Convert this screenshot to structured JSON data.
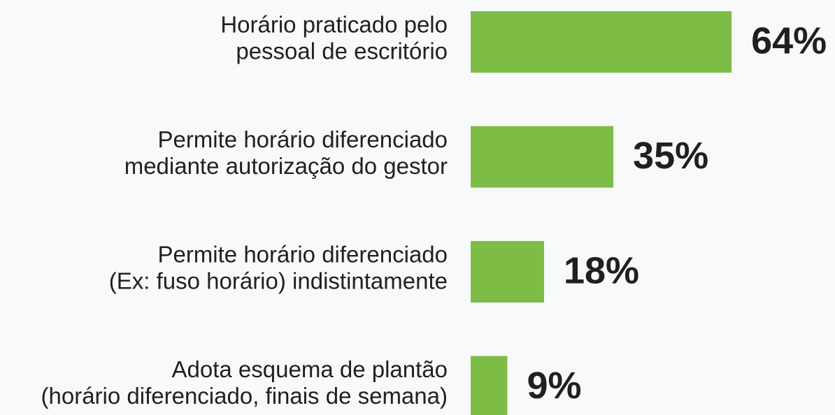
{
  "chart_data": {
    "type": "bar",
    "orientation": "horizontal",
    "categories": [
      [
        "Horário praticado pelo",
        "pessoal de escritório"
      ],
      [
        "Permite horário diferenciado",
        "mediante autorização do gestor"
      ],
      [
        "Permite horário diferenciado",
        "(Ex: fuso horário) indistintamente"
      ],
      [
        "Adota esquema de plantão",
        "(horário diferenciado, finais de semana)"
      ]
    ],
    "values": [
      64,
      35,
      18,
      9
    ],
    "value_labels": [
      "64%",
      "35%",
      "18%",
      "9%"
    ],
    "color": "#7dbd46"
  }
}
